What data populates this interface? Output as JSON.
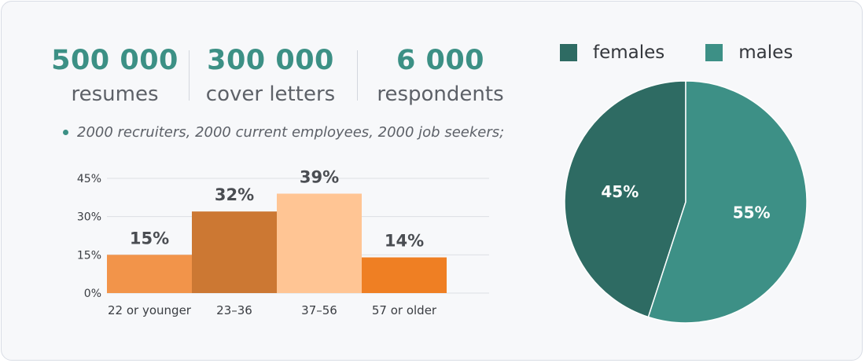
{
  "stats": [
    {
      "value": "500 000",
      "label": "resumes"
    },
    {
      "value": "300 000",
      "label": "cover letters"
    },
    {
      "value": "6 000",
      "label": "respondents"
    }
  ],
  "note": "2000 recruiters, 2000 current employees, 2000 job seekers;",
  "colors": {
    "accent": "#3c9085",
    "females": "#2e6b63",
    "males": "#3d9086",
    "bars": [
      "#f2944a",
      "#cc7833",
      "#ffc594",
      "#ef7f23"
    ]
  },
  "chart_data": [
    {
      "type": "bar",
      "categories": [
        "22 or younger",
        "23–36",
        "37–56",
        "57 or older"
      ],
      "values": [
        15,
        32,
        39,
        14
      ],
      "value_labels": [
        "15%",
        "32%",
        "39%",
        "14%"
      ],
      "ylim": [
        0,
        45
      ],
      "yticks": [
        "0%",
        "15%",
        "30%",
        "45%"
      ],
      "ytick_values": [
        0,
        15,
        30,
        45
      ],
      "grid": true
    },
    {
      "type": "pie",
      "categories": [
        "females",
        "males"
      ],
      "values": [
        45,
        55
      ],
      "value_labels": [
        "45%",
        "55%"
      ],
      "legend": "top"
    }
  ]
}
